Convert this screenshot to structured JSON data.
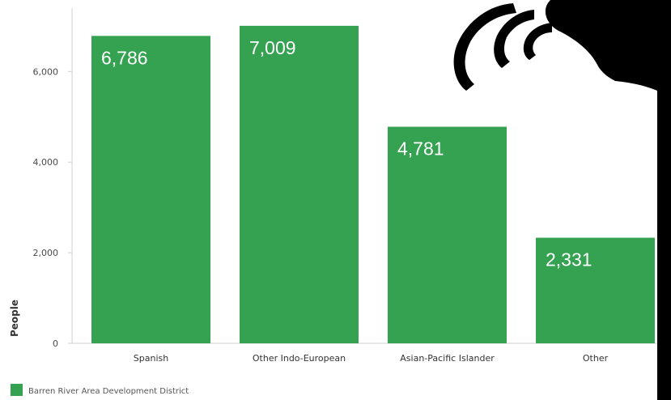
{
  "chart_data": {
    "type": "bar",
    "categories": [
      "Spanish",
      "Other Indo-European",
      "Asian-Pacific Islander",
      "Other"
    ],
    "series": [
      {
        "name": "Barren River Area Development District",
        "values": [
          6786,
          7009,
          4781,
          2331
        ],
        "color": "#34a250"
      }
    ],
    "data_labels": [
      "6,786",
      "7,009",
      "4,781",
      "2,331"
    ],
    "title": "",
    "xlabel": "",
    "ylabel": "People",
    "ylim": [
      0,
      7400
    ],
    "yticks": [
      0,
      2000,
      4000,
      6000
    ],
    "ytick_labels": [
      "0",
      "2,000",
      "4,000",
      "6,000"
    ],
    "grid": false,
    "legend_position": "bottom-left"
  },
  "overlay": {
    "icon": "speech-waves-icon",
    "color": "#000000"
  }
}
